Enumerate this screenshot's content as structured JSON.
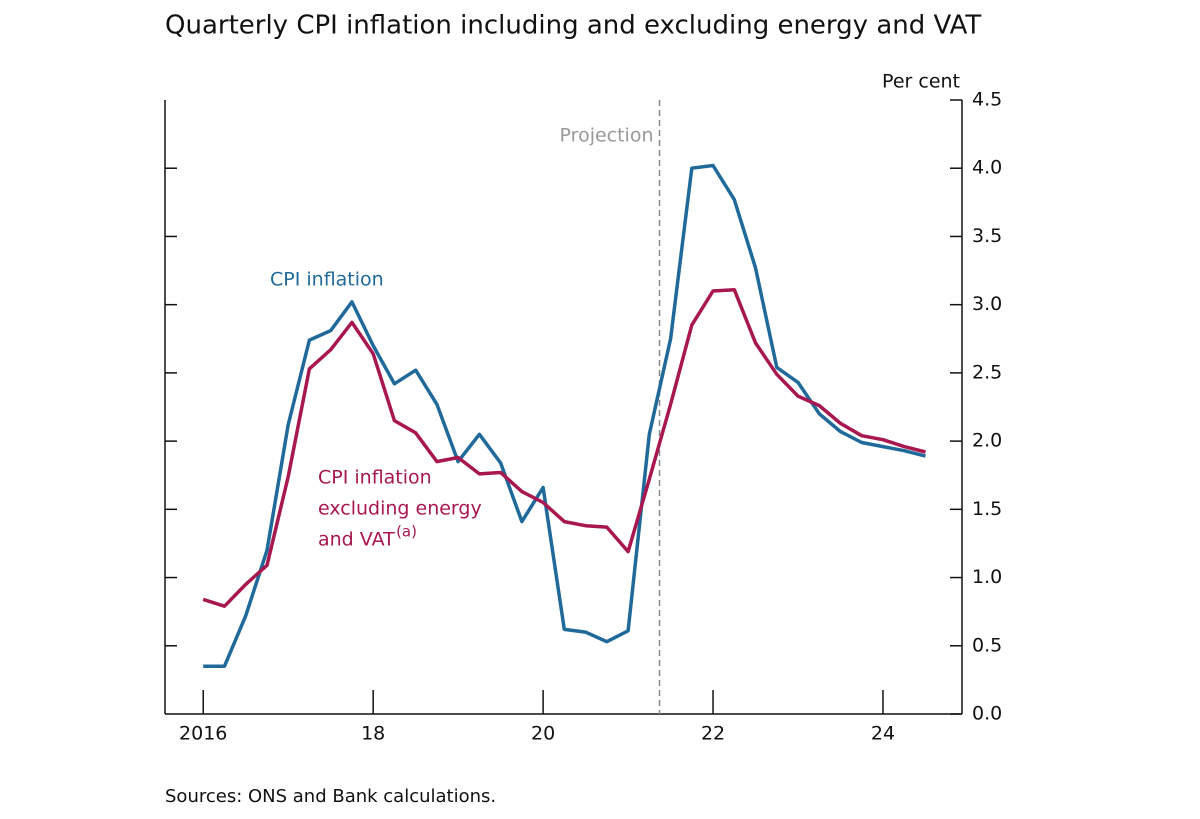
{
  "chart_data": {
    "type": "line",
    "title": "Quarterly CPI inflation including and excluding energy and VAT",
    "y_unit": "Per cent",
    "projection_label": "Projection",
    "projection_x": 2021.37,
    "source": "Sources: ONS and Bank calculations.",
    "x": [
      2016,
      2016.25,
      2016.5,
      2016.75,
      2017,
      2017.25,
      2017.5,
      2017.75,
      2018,
      2018.25,
      2018.5,
      2018.75,
      2019,
      2019.25,
      2019.5,
      2019.75,
      2020,
      2020.25,
      2020.5,
      2020.75,
      2021,
      2021.25,
      2021.5,
      2021.75,
      2022,
      2022.25,
      2022.5,
      2022.75,
      2023,
      2023.25,
      2023.5,
      2023.75,
      2024,
      2024.25,
      2024.5
    ],
    "series": [
      {
        "name": "CPI inflation",
        "color": "#1f6a9a",
        "values": [
          0.35,
          0.35,
          0.72,
          1.2,
          2.12,
          2.74,
          2.81,
          3.02,
          2.7,
          2.42,
          2.52,
          2.27,
          1.85,
          2.05,
          1.84,
          1.41,
          1.66,
          0.62,
          0.6,
          0.53,
          0.61,
          2.05,
          2.75,
          4.0,
          4.02,
          3.77,
          3.27,
          2.54,
          2.43,
          2.2,
          2.07,
          1.99,
          1.96,
          1.93,
          1.89
        ]
      },
      {
        "name_lines": [
          "CPI inflation",
          "excluding energy",
          "and VAT"
        ],
        "name_note": "(a)",
        "color": "#a8174f",
        "values": [
          0.84,
          0.79,
          0.95,
          1.09,
          1.74,
          2.53,
          2.67,
          2.87,
          2.64,
          2.15,
          2.06,
          1.85,
          1.88,
          1.76,
          1.77,
          1.63,
          1.55,
          1.41,
          1.38,
          1.37,
          1.19,
          1.72,
          2.27,
          2.85,
          3.1,
          3.11,
          2.72,
          2.49,
          2.33,
          2.26,
          2.13,
          2.04,
          2.01,
          1.96,
          1.92
        ]
      }
    ],
    "xlim": [
      2015.55,
      2024.93
    ],
    "xticks": [
      2016,
      {
        "value": 2018,
        "label": "18"
      },
      {
        "value": 2020,
        "label": "20"
      },
      {
        "value": 2022,
        "label": "22"
      },
      {
        "value": 2024,
        "label": "24"
      }
    ],
    "ylim": [
      0,
      4.5
    ],
    "yticks": [
      {
        "value": 0,
        "label": "0.0"
      },
      0.5,
      {
        "value": 1,
        "label": "1.0"
      },
      1.5,
      {
        "value": 2,
        "label": "2.0"
      },
      2.5,
      {
        "value": 3,
        "label": "3.0"
      },
      3.5,
      {
        "value": 4,
        "label": "4.0"
      },
      4.5
    ]
  }
}
